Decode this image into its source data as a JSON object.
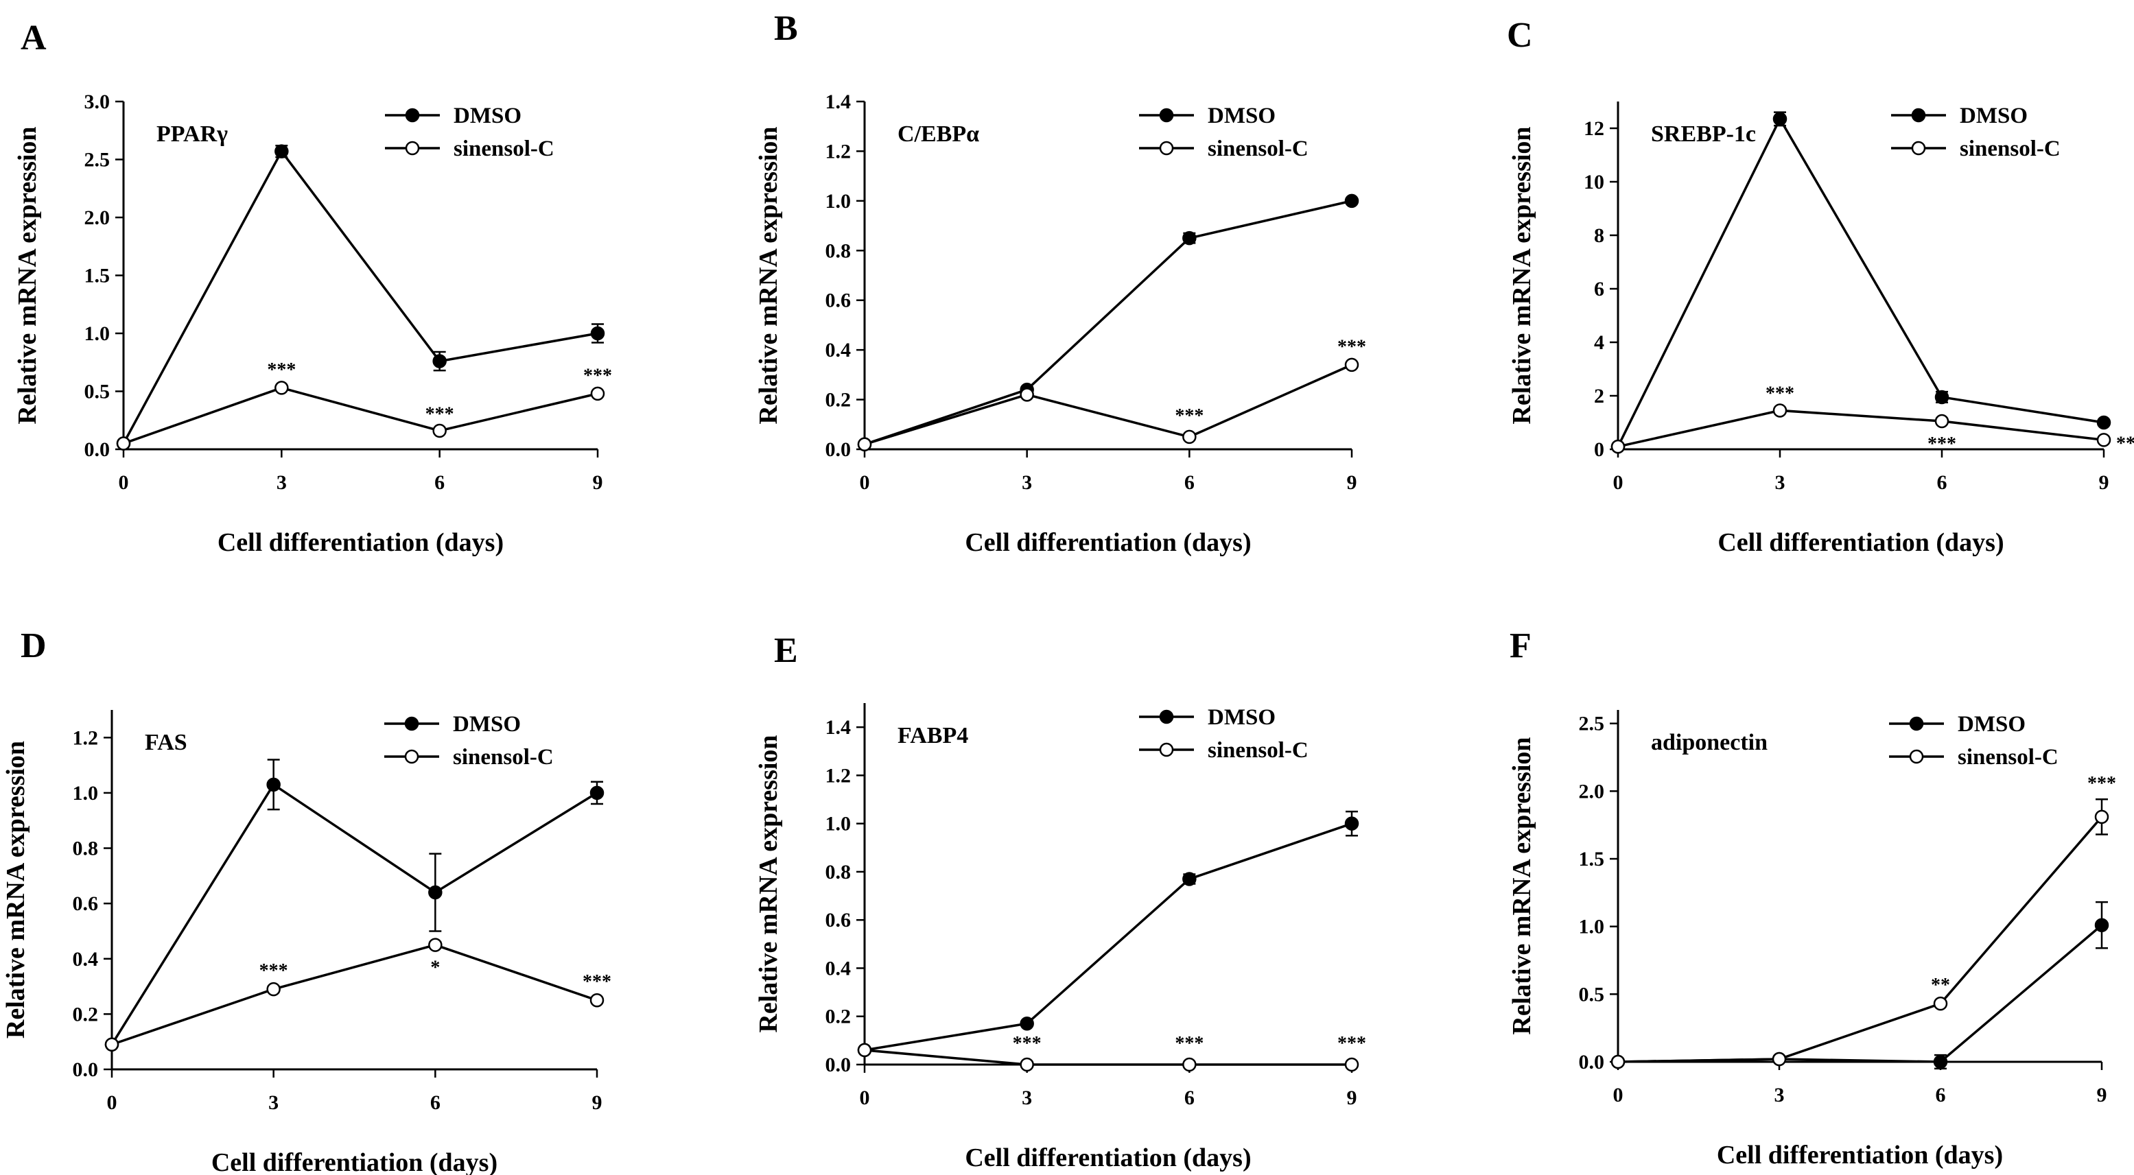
{
  "chart_data": [
    {
      "type": "line",
      "panel": "A",
      "title": "PPARγ",
      "xlabel": "Cell differentiation (days)",
      "ylabel": "Relative mRNA expression",
      "x": [
        0,
        3,
        6,
        9
      ],
      "xticks": [
        "0",
        "3",
        "6",
        "9"
      ],
      "xlim": [
        0,
        9
      ],
      "ylim": [
        0,
        3.0
      ],
      "yticks": [
        "0.0",
        "0.5",
        "1.0",
        "1.5",
        "2.0",
        "2.5",
        "3.0"
      ],
      "legend_position": "top-right",
      "series": [
        {
          "name": "DMSO",
          "marker": "filled",
          "values": [
            0.05,
            2.57,
            0.76,
            1.0
          ],
          "errors": [
            0,
            0.05,
            0.08,
            0.08
          ]
        },
        {
          "name": "sinensol-C",
          "marker": "open",
          "values": [
            0.05,
            0.53,
            0.16,
            0.48
          ],
          "errors": [
            0,
            0.02,
            0.01,
            0.02
          ]
        }
      ],
      "significance": [
        {
          "x": 3,
          "label": "***",
          "placement": "above"
        },
        {
          "x": 6,
          "label": "***",
          "placement": "above"
        },
        {
          "x": 9,
          "label": "***",
          "placement": "above"
        }
      ]
    },
    {
      "type": "line",
      "panel": "B",
      "title": "C/EBPα",
      "xlabel": "Cell differentiation (days)",
      "ylabel": "Relative mRNA expression",
      "x": [
        0,
        3,
        6,
        9
      ],
      "xticks": [
        "0",
        "3",
        "6",
        "9"
      ],
      "xlim": [
        0,
        9
      ],
      "ylim": [
        0,
        1.4
      ],
      "yticks": [
        "0.0",
        "0.2",
        "0.4",
        "0.6",
        "0.8",
        "1.0",
        "1.2",
        "1.4"
      ],
      "legend_position": "top-right",
      "series": [
        {
          "name": "DMSO",
          "marker": "filled",
          "values": [
            0.02,
            0.24,
            0.85,
            1.0
          ],
          "errors": [
            0,
            0.01,
            0.02,
            0
          ]
        },
        {
          "name": "sinensol-C",
          "marker": "open",
          "values": [
            0.02,
            0.22,
            0.05,
            0.34
          ],
          "errors": [
            0,
            0.01,
            0,
            0.01
          ]
        }
      ],
      "significance": [
        {
          "x": 6,
          "label": "***",
          "placement": "above"
        },
        {
          "x": 9,
          "label": "***",
          "placement": "above"
        }
      ]
    },
    {
      "type": "line",
      "panel": "C",
      "title": "SREBP-1c",
      "xlabel": "Cell differentiation (days)",
      "ylabel": "Relative mRNA expression",
      "x": [
        0,
        3,
        6,
        9
      ],
      "xticks": [
        "0",
        "3",
        "6",
        "9"
      ],
      "xlim": [
        0,
        9
      ],
      "ylim": [
        0,
        13
      ],
      "yticks": [
        "0",
        "2",
        "4",
        "6",
        "8",
        "10",
        "12"
      ],
      "legend_position": "top-right",
      "series": [
        {
          "name": "DMSO",
          "marker": "filled",
          "values": [
            0.1,
            12.35,
            1.95,
            1.0
          ],
          "errors": [
            0,
            0.25,
            0.2,
            0
          ]
        },
        {
          "name": "sinensol-C",
          "marker": "open",
          "values": [
            0.1,
            1.45,
            1.05,
            0.35
          ],
          "errors": [
            0,
            0.05,
            0.05,
            0.02
          ]
        }
      ],
      "significance": [
        {
          "x": 3,
          "label": "***",
          "placement": "above"
        },
        {
          "x": 6,
          "label": "***",
          "placement": "below"
        },
        {
          "x": 9,
          "label": "**",
          "placement": "right"
        }
      ]
    },
    {
      "type": "line",
      "panel": "D",
      "title": "FAS",
      "xlabel": "Cell differentiation (days)",
      "ylabel": "Relative mRNA expression",
      "x": [
        0,
        3,
        6,
        9
      ],
      "xticks": [
        "0",
        "3",
        "6",
        "9"
      ],
      "xlim": [
        0,
        9
      ],
      "ylim": [
        0,
        1.3
      ],
      "yticks": [
        "0.0",
        "0.2",
        "0.4",
        "0.6",
        "0.8",
        "1.0",
        "1.2"
      ],
      "legend_position": "top-right",
      "series": [
        {
          "name": "DMSO",
          "marker": "filled",
          "values": [
            0.09,
            1.03,
            0.64,
            1.0
          ],
          "errors": [
            0,
            0.09,
            0.14,
            0.04
          ]
        },
        {
          "name": "sinensol-C",
          "marker": "open",
          "values": [
            0.09,
            0.29,
            0.45,
            0.25
          ],
          "errors": [
            0,
            0.01,
            0.01,
            0.01
          ]
        }
      ],
      "significance": [
        {
          "x": 3,
          "label": "***",
          "placement": "above"
        },
        {
          "x": 6,
          "label": "*",
          "placement": "below"
        },
        {
          "x": 9,
          "label": "***",
          "placement": "above"
        }
      ]
    },
    {
      "type": "line",
      "panel": "E",
      "title": "FABP4",
      "xlabel": "Cell differentiation (days)",
      "ylabel": "Relative mRNA expression",
      "x": [
        0,
        3,
        6,
        9
      ],
      "xticks": [
        "0",
        "3",
        "6",
        "9"
      ],
      "xlim": [
        0,
        9
      ],
      "ylim": [
        0,
        1.5
      ],
      "yticks": [
        "0.0",
        "0.2",
        "0.4",
        "0.6",
        "0.8",
        "1.0",
        "1.2",
        "1.4"
      ],
      "legend_position": "top-right",
      "series": [
        {
          "name": "DMSO",
          "marker": "filled",
          "values": [
            0.06,
            0.17,
            0.77,
            1.0
          ],
          "errors": [
            0,
            0.01,
            0.02,
            0.05
          ]
        },
        {
          "name": "sinensol-C",
          "marker": "open",
          "values": [
            0.06,
            0.0,
            0.0,
            0.0
          ],
          "errors": [
            0,
            0,
            0,
            0
          ]
        }
      ],
      "significance": [
        {
          "x": 3,
          "label": "***",
          "placement": "above"
        },
        {
          "x": 6,
          "label": "***",
          "placement": "above"
        },
        {
          "x": 9,
          "label": "***",
          "placement": "above"
        }
      ]
    },
    {
      "type": "line",
      "panel": "F",
      "title": "adiponectin",
      "xlabel": "Cell differentiation (days)",
      "ylabel": "Relative mRNA expression",
      "x": [
        0,
        3,
        6,
        9
      ],
      "xticks": [
        "0",
        "3",
        "6",
        "9"
      ],
      "xlim": [
        0,
        9
      ],
      "ylim": [
        0,
        2.6
      ],
      "yticks": [
        "0.0",
        "0.5",
        "1.0",
        "1.5",
        "2.0",
        "2.5"
      ],
      "legend_position": "top-right",
      "series": [
        {
          "name": "DMSO",
          "marker": "filled",
          "values": [
            0.0,
            0.02,
            0.0,
            1.01
          ],
          "errors": [
            0,
            0,
            0.05,
            0.17
          ]
        },
        {
          "name": "sinensol-C",
          "marker": "open",
          "values": [
            0.0,
            0.02,
            0.43,
            1.81
          ],
          "errors": [
            0,
            0,
            0.02,
            0.13
          ]
        }
      ],
      "significance": [
        {
          "x": 6,
          "label": "**",
          "placement": "above"
        },
        {
          "x": 9,
          "label": "***",
          "placement": "above"
        }
      ]
    }
  ]
}
